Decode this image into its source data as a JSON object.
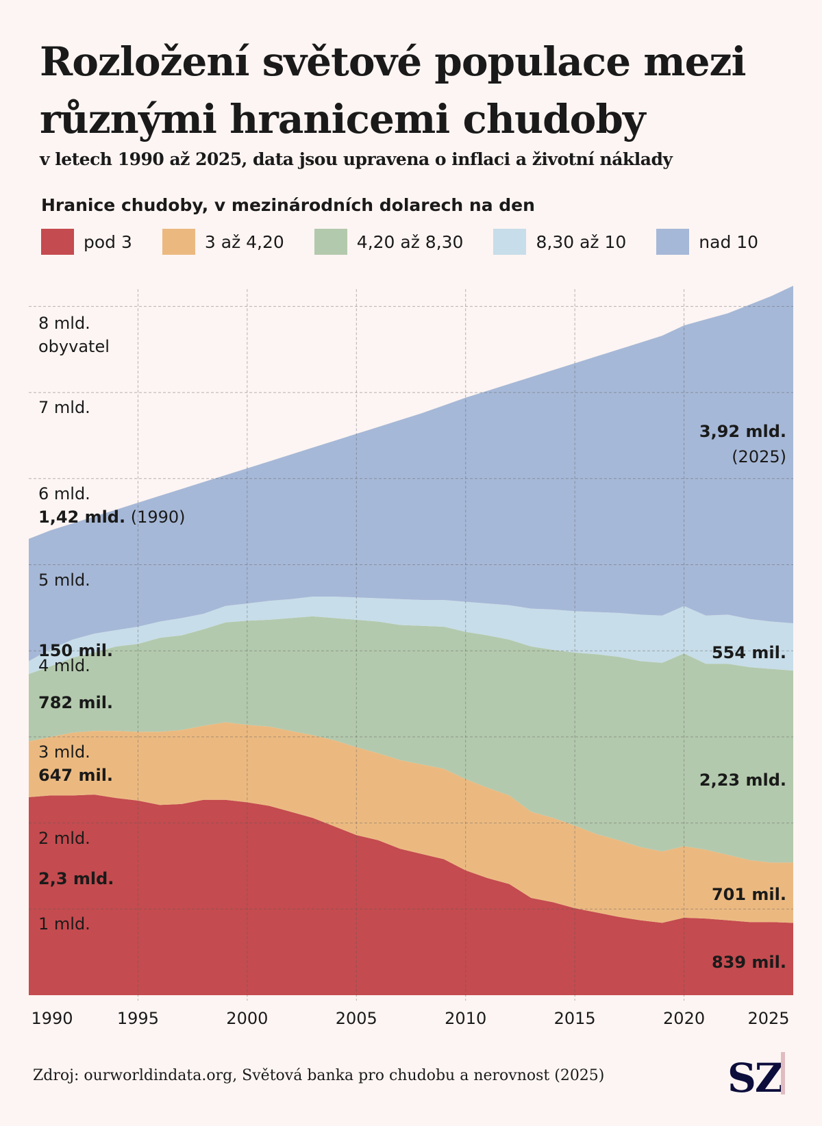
{
  "title": "Rozložení světové populace mezi různými hranicemi chudoby",
  "subtitle": "v letech 1990 až 2025, data jsou upravena o inflaci a životní náklady",
  "source": "Zdroj: ourworldindata.org, Světová banka pro chudobu a nerovnost (2025)",
  "logo": "SZ",
  "chart_data": {
    "type": "area",
    "stacked": true,
    "legend_title": "Hranice chudoby, v mezinárodních dolarech na den",
    "legend_position": "top",
    "x": [
      1990,
      1991,
      1992,
      1993,
      1994,
      1995,
      1996,
      1997,
      1998,
      1999,
      2000,
      2001,
      2002,
      2003,
      2004,
      2005,
      2006,
      2007,
      2008,
      2009,
      2010,
      2011,
      2012,
      2013,
      2014,
      2015,
      2016,
      2017,
      2018,
      2019,
      2020,
      2021,
      2022,
      2023,
      2024,
      2025
    ],
    "xlim": [
      1990,
      2025
    ],
    "x_ticks": [
      "1990",
      "1995",
      "2000",
      "2005",
      "2010",
      "2015",
      "2020",
      "2025"
    ],
    "ylim": [
      0,
      8.2
    ],
    "y_unit": "mld.",
    "y_ticks": [
      {
        "value": 1,
        "label": "1 mld."
      },
      {
        "value": 2,
        "label": "2 mld."
      },
      {
        "value": 3,
        "label": "3 mld."
      },
      {
        "value": 4,
        "label": "4 mld."
      },
      {
        "value": 5,
        "label": "5 mld."
      },
      {
        "value": 6,
        "label": "6 mld."
      },
      {
        "value": 7,
        "label": "7 mld."
      },
      {
        "value": 8,
        "label": "8 mld.",
        "label2": "obyvatel"
      }
    ],
    "grid": true,
    "series": [
      {
        "name": "pod 3",
        "color": "#c44b4f",
        "values": [
          2.3,
          2.32,
          2.32,
          2.33,
          2.29,
          2.26,
          2.21,
          2.22,
          2.27,
          2.27,
          2.24,
          2.2,
          2.13,
          2.06,
          1.96,
          1.86,
          1.8,
          1.7,
          1.64,
          1.58,
          1.45,
          1.36,
          1.29,
          1.13,
          1.08,
          1.01,
          0.96,
          0.91,
          0.87,
          0.84,
          0.9,
          0.89,
          0.87,
          0.85,
          0.85,
          0.84
        ]
      },
      {
        "name": "3 až 4,20",
        "color": "#ebb980",
        "values": [
          0.65,
          0.68,
          0.73,
          0.74,
          0.78,
          0.8,
          0.85,
          0.86,
          0.86,
          0.9,
          0.9,
          0.92,
          0.94,
          0.96,
          1.0,
          1.02,
          1.01,
          1.03,
          1.04,
          1.05,
          1.06,
          1.05,
          1.03,
          1.0,
          0.98,
          0.96,
          0.91,
          0.89,
          0.85,
          0.83,
          0.83,
          0.8,
          0.76,
          0.72,
          0.69,
          0.7
        ]
      },
      {
        "name": "4,20 až 8,30",
        "color": "#b3c9ad",
        "values": [
          0.78,
          0.82,
          0.87,
          0.91,
          0.98,
          1.02,
          1.09,
          1.1,
          1.12,
          1.16,
          1.21,
          1.24,
          1.31,
          1.38,
          1.42,
          1.48,
          1.53,
          1.57,
          1.61,
          1.65,
          1.71,
          1.77,
          1.81,
          1.92,
          1.95,
          2.01,
          2.09,
          2.13,
          2.16,
          2.19,
          2.24,
          2.16,
          2.22,
          2.24,
          2.25,
          2.23
        ]
      },
      {
        "name": "8,30 až 10",
        "color": "#c7dde9",
        "values": [
          0.15,
          0.2,
          0.21,
          0.22,
          0.19,
          0.2,
          0.19,
          0.2,
          0.18,
          0.19,
          0.2,
          0.22,
          0.22,
          0.23,
          0.25,
          0.26,
          0.27,
          0.3,
          0.3,
          0.31,
          0.35,
          0.37,
          0.4,
          0.44,
          0.47,
          0.48,
          0.49,
          0.51,
          0.54,
          0.55,
          0.55,
          0.56,
          0.57,
          0.56,
          0.55,
          0.55
        ]
      },
      {
        "name": "nad 10",
        "color": "#a6b8d7",
        "values": [
          1.42,
          1.38,
          1.35,
          1.36,
          1.4,
          1.44,
          1.46,
          1.5,
          1.53,
          1.52,
          1.57,
          1.62,
          1.68,
          1.73,
          1.81,
          1.9,
          1.99,
          2.08,
          2.17,
          2.26,
          2.37,
          2.47,
          2.57,
          2.69,
          2.78,
          2.88,
          2.97,
          3.06,
          3.16,
          3.25,
          3.26,
          3.44,
          3.5,
          3.65,
          3.78,
          3.92
        ]
      }
    ],
    "annotations": {
      "left": [
        {
          "bold": "1,42 mld.",
          "extra": " (1990)",
          "y": 5.55
        },
        {
          "bold": "150 mil.",
          "y": 4.0
        },
        {
          "bold": "782 mil.",
          "y": 3.4
        },
        {
          "bold": "647 mil.",
          "y": 2.55
        },
        {
          "bold": "2,3 mld.",
          "y": 1.35
        }
      ],
      "right": [
        {
          "bold": "3,92 mld.",
          "y": 6.55
        },
        {
          "extra": "(2025)",
          "y": 6.25
        },
        {
          "bold": "554 mil.",
          "y": 3.98
        },
        {
          "bold": "2,23 mld.",
          "y": 2.5
        },
        {
          "bold": "701 mil.",
          "y": 1.17
        },
        {
          "bold": "839 mil.",
          "y": 0.38
        }
      ]
    }
  }
}
